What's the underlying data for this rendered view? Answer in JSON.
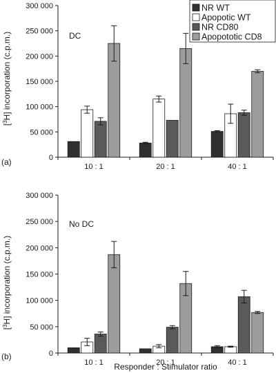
{
  "colors": {
    "axis": "#1a1a1a",
    "bar_stroke": "#1a1a1a",
    "error": "#1a1a1a"
  },
  "legend": {
    "placement": "top-right of upper panel",
    "entries": [
      {
        "label": "NR WT",
        "color": "#303030"
      },
      {
        "label": "Apopotic WT",
        "color": "#ffffff"
      },
      {
        "label": "NR CD80",
        "color": "#5a5a5a"
      },
      {
        "label": "Apopototic CD8",
        "color": "#9c9c9c"
      }
    ]
  },
  "shared_xlabel": "Responder : Stimulator ratio",
  "chart_data": [
    {
      "type": "bar",
      "panel_label": "(a)",
      "annotation": "DC",
      "ylabel_parts": {
        "pre": "[",
        "sup": "3",
        "post": "H] incorporation (c.p.m.)"
      },
      "categories": [
        "10 : 1",
        "20 : 1",
        "40 : 1"
      ],
      "ylim": [
        0,
        300000
      ],
      "yticks": [
        0,
        50000,
        100000,
        150000,
        200000,
        250000,
        300000
      ],
      "ytick_labels": [
        "0",
        "50 000",
        "100 000",
        "150 000",
        "200 000",
        "250 000",
        "300 000"
      ],
      "series": [
        {
          "name": "NR WT",
          "color": "#303030",
          "values": [
            31000,
            28000,
            51000
          ],
          "errors": [
            0,
            1500,
            1500
          ]
        },
        {
          "name": "Apopotic WT",
          "color": "#ffffff",
          "values": [
            94000,
            115000,
            86000
          ],
          "errors": [
            7000,
            6000,
            19000
          ]
        },
        {
          "name": "NR CD80",
          "color": "#5a5a5a",
          "values": [
            71000,
            73000,
            88000
          ],
          "errors": [
            7000,
            0,
            5000
          ]
        },
        {
          "name": "Apopototic CD8",
          "color": "#9c9c9c",
          "values": [
            225000,
            215000,
            170000
          ],
          "errors": [
            35000,
            30000,
            3000
          ]
        }
      ]
    },
    {
      "type": "bar",
      "panel_label": "(b)",
      "annotation": "No DC",
      "ylabel_parts": {
        "pre": "[",
        "sup": "3",
        "post": "H] incorporation (c.p.m.)"
      },
      "categories": [
        "10 : 1",
        "20 : 1",
        "40 : 1"
      ],
      "ylim": [
        0,
        300000
      ],
      "yticks": [
        0,
        50000,
        100000,
        150000,
        200000,
        250000,
        300000
      ],
      "ytick_labels": [
        "0",
        "50 000",
        "100 000",
        "150 000",
        "200 000",
        "250 000",
        "300 000"
      ],
      "series": [
        {
          "name": "NR WT",
          "color": "#303030",
          "values": [
            10000,
            8000,
            12000
          ],
          "errors": [
            0,
            0,
            2000
          ]
        },
        {
          "name": "Apopotic WT",
          "color": "#ffffff",
          "values": [
            21000,
            13000,
            12000
          ],
          "errors": [
            7000,
            3000,
            1000
          ]
        },
        {
          "name": "NR CD80",
          "color": "#5a5a5a",
          "values": [
            36000,
            49000,
            107000
          ],
          "errors": [
            4000,
            3000,
            12000
          ]
        },
        {
          "name": "Apopototic CD8",
          "color": "#9c9c9c",
          "values": [
            187000,
            132000,
            77000
          ],
          "errors": [
            25000,
            23000,
            2000
          ]
        }
      ]
    }
  ]
}
